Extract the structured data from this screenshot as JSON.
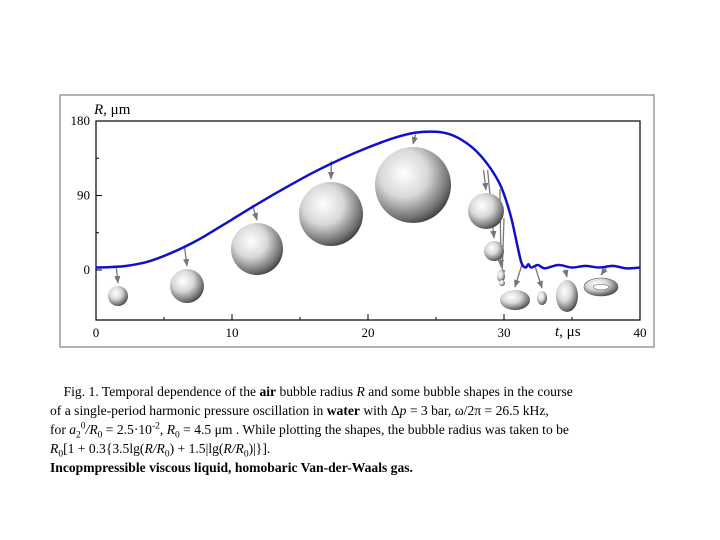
{
  "chart_data": {
    "type": "line",
    "title": "",
    "ylabel_var": "R,",
    "ylabel_unit": "μm",
    "xlabel_var": "t,",
    "xlabel_unit": "μs",
    "xlim": [
      0,
      40
    ],
    "ylim": [
      -10,
      180
    ],
    "x_ticks": [
      "0",
      "10",
      "20",
      "30",
      "40"
    ],
    "y_ticks": [
      "0",
      "90",
      "180"
    ],
    "grid": false,
    "line_color": "#1010c8",
    "series": [
      {
        "x": [
          0,
          1,
          2,
          3,
          4,
          5,
          6,
          7,
          8,
          10,
          12,
          14,
          16,
          18,
          20,
          22,
          23.5,
          25,
          26,
          27,
          28,
          29,
          29.8,
          30.5,
          31.0,
          31.3,
          31.6,
          31.8,
          32.0,
          32.5,
          33,
          34,
          35,
          36,
          37,
          38,
          39,
          40
        ],
        "y": [
          3,
          3.5,
          4.5,
          7,
          11,
          17,
          24,
          32,
          41,
          61,
          81,
          100,
          118,
          134,
          148,
          160,
          166,
          167,
          164,
          156,
          143,
          123,
          100,
          65,
          28,
          8,
          3,
          7,
          3,
          6,
          2,
          6,
          3,
          5,
          3,
          5,
          2,
          3
        ]
      }
    ],
    "bubbles": [
      {
        "t": 1.5,
        "r": 4
      },
      {
        "t": 6.5,
        "r": 15
      },
      {
        "t": 11.5,
        "r": 29
      },
      {
        "t": 17.3,
        "r": 48
      },
      {
        "t": 23.5,
        "r": 70
      },
      {
        "t": 28.5,
        "r": 17
      },
      {
        "t": 28.8,
        "r": 9
      },
      {
        "t": 29.7,
        "r": 4
      },
      {
        "t": 30.0,
        "r": 3
      },
      {
        "t": 31.3,
        "r": 8
      },
      {
        "t": 32.3,
        "r": 5
      },
      {
        "t": 34.5,
        "r": 8
      },
      {
        "t": 37.5,
        "r": 7
      }
    ]
  },
  "caption": {
    "p1_a": "Fig. 1. Temporal dependence of the ",
    "p1_air": "air",
    "p1_b": " bubble radius ",
    "p1_R": "R",
    "p1_c": " and some bubble shapes in the course",
    "p2_a": "of a single-period harmonic pressure oscillation in ",
    "p2_water": "water",
    "p2_b": " with Δ",
    "p2_p": "p",
    "p2_c": " = 3 bar, ω/2π = 26.5 kHz,",
    "p3_a": "for ",
    "p3_a2": "a",
    "p3_sub2": "2",
    "p3_sup0": "0",
    "p3_R0": "/R",
    "p3_sub0": "0",
    "p3_b": " = 2.5·10",
    "p3_sup": "-2",
    "p3_c": ", ",
    "p3_R": "R",
    "p3_sub0b": "0",
    "p3_d": " = 4.5 μm . While plotting the shapes, the bubble radius was taken to be",
    "p4_R": "R",
    "p4_sub0": "0",
    "p4_a": "[1 + 0.3{3.5lg(",
    "p4_R2": "R/R",
    "p4_sub1": "0",
    "p4_b": ") + 1.5|lg(",
    "p4_R3": "R/R",
    "p4_sub2": "0",
    "p4_c": ")|}].",
    "p5": "Incopmpressible viscous liquid, homobaric Van-der-Waals gas."
  }
}
